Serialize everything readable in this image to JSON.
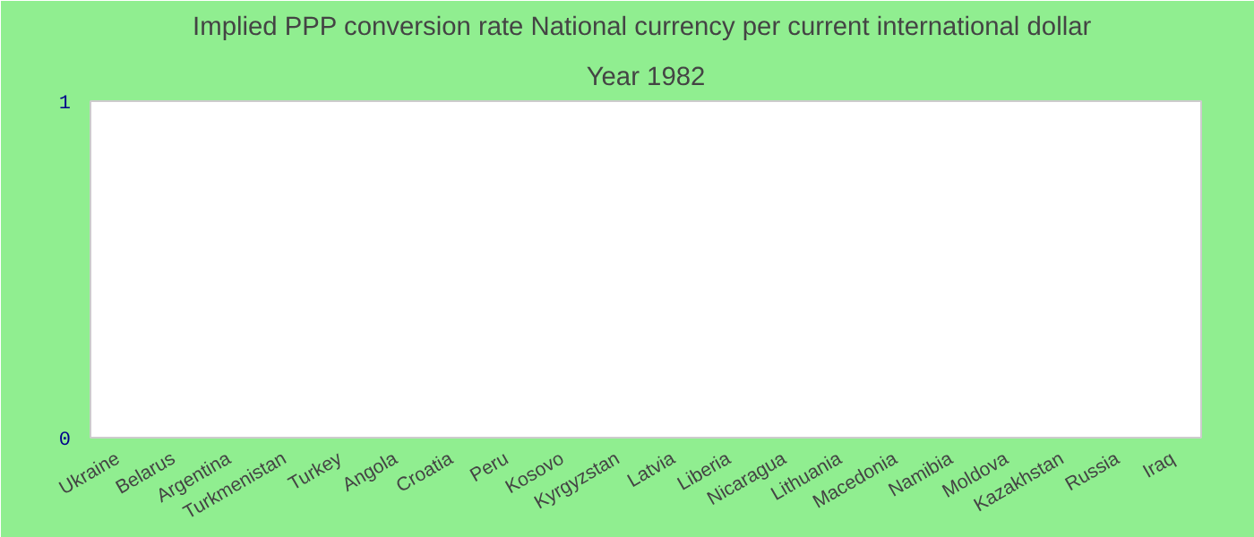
{
  "chart_data": {
    "type": "bar",
    "title": "Implied PPP conversion rate  National currency per current international dollar",
    "subtitle": "Year 1982",
    "categories": [
      "Ukraine",
      "Belarus",
      "Argentina",
      "Turkmenistan",
      "Turkey",
      "Angola",
      "Croatia",
      "Peru",
      "Kosovo",
      "Kyrgyzstan",
      "Latvia",
      "Liberia",
      "Nicaragua",
      "Lithuania",
      "Macedonia",
      "Namibia",
      "Moldova",
      "Kazakhstan",
      "Russia",
      "Iraq"
    ],
    "values": [
      0,
      0,
      0,
      0,
      0,
      0,
      0,
      0,
      0,
      0,
      0,
      0,
      0,
      0,
      0,
      0,
      0,
      0,
      0,
      0
    ],
    "ylim": [
      0,
      1
    ],
    "yticks": [
      0,
      1
    ],
    "grid": false
  }
}
